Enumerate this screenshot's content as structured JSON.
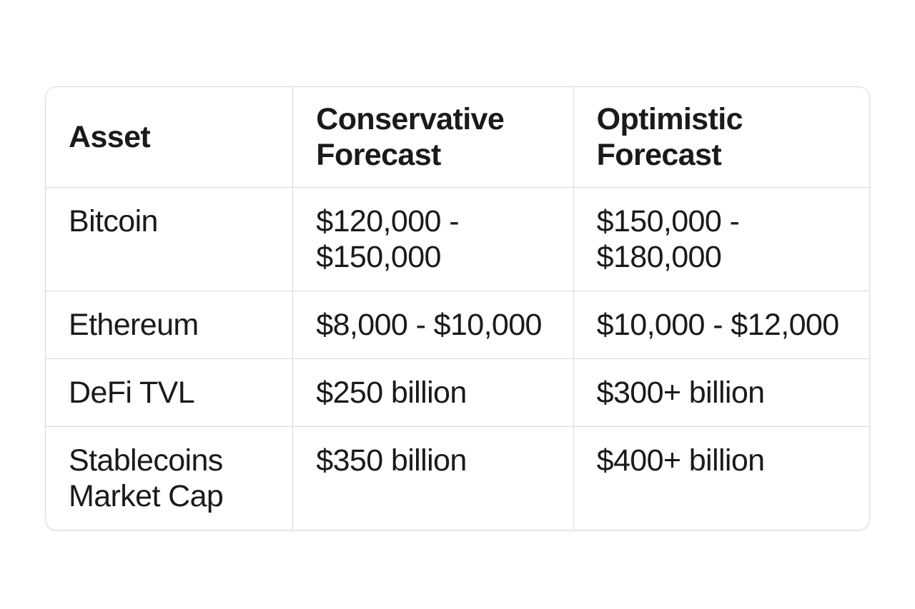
{
  "colors": {
    "border": "#d9d9d9",
    "text": "#1a1a1a",
    "background": "#ffffff",
    "cell-bg": "#ffffff"
  },
  "chart_data": {
    "type": "table",
    "columns": [
      "Asset",
      "Conservative Forecast",
      "Optimistic Forecast"
    ],
    "rows": [
      [
        "Bitcoin",
        "$120,000 - $150,000",
        "$150,000 - $180,000"
      ],
      [
        "Ethereum",
        "$8,000 - $10,000",
        "$10,000 - $12,000"
      ],
      [
        "DeFi TVL",
        "$250 billion",
        "$300+ billion"
      ],
      [
        "Stablecoins Market Cap",
        "$350 billion",
        "$400+ billion"
      ]
    ]
  }
}
